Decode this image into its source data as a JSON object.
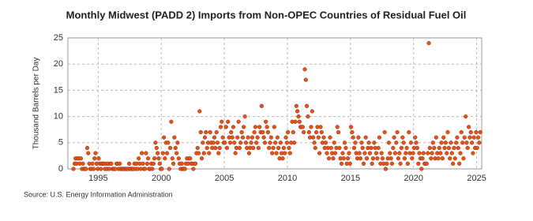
{
  "chart_data": {
    "type": "scatter",
    "title": "Monthly Midwest (PADD 2) Imports from Non-OPEC Countries of Residual Fuel Oil",
    "y_label": "Thousand Barrels per Day",
    "source": "Source: U.S. Energy Information Administration",
    "xlim": [
      1992.6,
      2025.4
    ],
    "xticks": [
      1995,
      2000,
      2005,
      2010,
      2015,
      2020,
      2025
    ],
    "ylim": [
      0,
      25
    ],
    "yticks": [
      0,
      5,
      10,
      15,
      20,
      25
    ],
    "grid": true,
    "series": [
      {
        "color": "#e0541c",
        "x": [
          1993.04,
          1993.13,
          1993.21,
          1993.29,
          1993.38,
          1993.46,
          1993.54,
          1993.63,
          1993.71,
          1993.79,
          1993.88,
          1993.96,
          1994.04,
          1994.13,
          1994.21,
          1994.29,
          1994.38,
          1994.46,
          1994.54,
          1994.63,
          1994.71,
          1994.79,
          1994.88,
          1994.96,
          1995.04,
          1995.13,
          1995.21,
          1995.29,
          1995.38,
          1995.46,
          1995.54,
          1995.63,
          1995.71,
          1995.79,
          1995.88,
          1995.96,
          1996.04,
          1996.13,
          1996.21,
          1996.29,
          1996.38,
          1996.46,
          1996.54,
          1996.63,
          1996.71,
          1996.79,
          1996.88,
          1996.96,
          1997.04,
          1997.13,
          1997.21,
          1997.29,
          1997.38,
          1997.46,
          1997.54,
          1997.63,
          1997.71,
          1997.79,
          1997.88,
          1997.96,
          1998.04,
          1998.13,
          1998.21,
          1998.29,
          1998.38,
          1998.46,
          1998.54,
          1998.63,
          1998.71,
          1998.79,
          1998.88,
          1998.96,
          1999.04,
          1999.13,
          1999.21,
          1999.29,
          1999.38,
          1999.46,
          1999.54,
          1999.63,
          1999.71,
          1999.79,
          1999.88,
          1999.96,
          2000.04,
          2000.13,
          2000.21,
          2000.29,
          2000.38,
          2000.46,
          2000.54,
          2000.63,
          2000.71,
          2000.79,
          2000.88,
          2000.96,
          2001.04,
          2001.13,
          2001.21,
          2001.29,
          2001.38,
          2001.46,
          2001.54,
          2001.63,
          2001.71,
          2001.79,
          2001.88,
          2001.96,
          2002.04,
          2002.13,
          2002.21,
          2002.29,
          2002.38,
          2002.46,
          2002.54,
          2002.63,
          2002.71,
          2002.79,
          2002.88,
          2002.96,
          2003.04,
          2003.13,
          2003.21,
          2003.29,
          2003.38,
          2003.46,
          2003.54,
          2003.63,
          2003.71,
          2003.79,
          2003.88,
          2003.96,
          2004.04,
          2004.13,
          2004.21,
          2004.29,
          2004.38,
          2004.46,
          2004.54,
          2004.63,
          2004.71,
          2004.79,
          2004.88,
          2004.96,
          2005.04,
          2005.13,
          2005.21,
          2005.29,
          2005.38,
          2005.46,
          2005.54,
          2005.63,
          2005.71,
          2005.79,
          2005.88,
          2005.96,
          2006.04,
          2006.13,
          2006.21,
          2006.29,
          2006.38,
          2006.46,
          2006.54,
          2006.63,
          2006.71,
          2006.79,
          2006.88,
          2006.96,
          2007.04,
          2007.13,
          2007.21,
          2007.29,
          2007.38,
          2007.46,
          2007.54,
          2007.63,
          2007.71,
          2007.79,
          2007.88,
          2007.96,
          2008.04,
          2008.13,
          2008.21,
          2008.29,
          2008.38,
          2008.46,
          2008.54,
          2008.63,
          2008.71,
          2008.79,
          2008.88,
          2008.96,
          2009.04,
          2009.13,
          2009.21,
          2009.29,
          2009.38,
          2009.46,
          2009.54,
          2009.63,
          2009.71,
          2009.79,
          2009.88,
          2009.96,
          2010.04,
          2010.13,
          2010.21,
          2010.29,
          2010.38,
          2010.46,
          2010.54,
          2010.63,
          2010.71,
          2010.79,
          2010.88,
          2010.96,
          2011.04,
          2011.13,
          2011.21,
          2011.29,
          2011.38,
          2011.46,
          2011.54,
          2011.63,
          2011.71,
          2011.79,
          2011.88,
          2011.96,
          2012.04,
          2012.13,
          2012.21,
          2012.29,
          2012.38,
          2012.46,
          2012.54,
          2012.63,
          2012.71,
          2012.79,
          2012.88,
          2012.96,
          2013.04,
          2013.13,
          2013.21,
          2013.29,
          2013.38,
          2013.46,
          2013.54,
          2013.63,
          2013.71,
          2013.79,
          2013.88,
          2013.96,
          2014.04,
          2014.13,
          2014.21,
          2014.29,
          2014.38,
          2014.46,
          2014.54,
          2014.63,
          2014.71,
          2014.79,
          2014.88,
          2014.96,
          2015.04,
          2015.13,
          2015.21,
          2015.29,
          2015.38,
          2015.46,
          2015.54,
          2015.63,
          2015.71,
          2015.79,
          2015.88,
          2015.96,
          2016.04,
          2016.13,
          2016.21,
          2016.29,
          2016.38,
          2016.46,
          2016.54,
          2016.63,
          2016.71,
          2016.79,
          2016.88,
          2016.96,
          2017.04,
          2017.13,
          2017.21,
          2017.29,
          2017.38,
          2017.46,
          2017.54,
          2017.63,
          2017.71,
          2017.79,
          2017.88,
          2017.96,
          2018.04,
          2018.13,
          2018.21,
          2018.29,
          2018.38,
          2018.46,
          2018.54,
          2018.63,
          2018.71,
          2018.79,
          2018.88,
          2018.96,
          2019.04,
          2019.13,
          2019.21,
          2019.29,
          2019.38,
          2019.46,
          2019.54,
          2019.63,
          2019.71,
          2019.79,
          2019.88,
          2019.96,
          2020.04,
          2020.13,
          2020.21,
          2020.29,
          2020.38,
          2020.46,
          2020.54,
          2020.63,
          2020.71,
          2020.79,
          2020.88,
          2020.96,
          2021.04,
          2021.13,
          2021.21,
          2021.29,
          2021.38,
          2021.46,
          2021.54,
          2021.63,
          2021.71,
          2021.79,
          2021.88,
          2021.96,
          2022.04,
          2022.13,
          2022.21,
          2022.29,
          2022.38,
          2022.46,
          2022.54,
          2022.63,
          2022.71,
          2022.79,
          2022.88,
          2022.96,
          2023.04,
          2023.13,
          2023.21,
          2023.29,
          2023.38,
          2023.46,
          2023.54,
          2023.63,
          2023.71,
          2023.79,
          2023.88,
          2023.96,
          2024.04,
          2024.13,
          2024.21,
          2024.29,
          2024.38,
          2024.46,
          2024.54,
          2024.63,
          2024.71,
          2024.79,
          2024.88,
          2024.96,
          2025.04,
          2025.13,
          2025.21,
          2025.29
        ],
        "values": [
          0,
          1,
          2,
          1,
          2,
          2,
          1,
          2,
          0,
          1,
          0,
          0,
          0,
          4,
          3,
          1,
          0,
          0,
          1,
          0,
          2,
          3,
          1,
          0,
          2,
          1,
          0,
          1,
          1,
          1,
          0,
          1,
          0,
          1,
          0,
          1,
          1,
          0,
          0,
          0,
          0,
          1,
          1,
          0,
          1,
          0,
          0,
          0,
          0,
          0,
          0,
          0,
          0,
          1,
          0,
          0,
          0,
          0,
          1,
          0,
          1,
          0,
          2,
          1,
          0,
          3,
          1,
          0,
          0,
          3,
          1,
          2,
          0,
          0,
          1,
          0,
          1,
          2,
          5,
          4,
          3,
          2,
          1,
          0,
          0,
          3,
          6,
          2,
          5,
          3,
          5,
          0,
          4,
          9,
          2,
          1,
          6,
          4,
          3,
          5,
          2,
          1,
          0,
          1,
          0,
          0,
          0,
          1,
          2,
          1,
          2,
          2,
          1,
          1,
          0,
          1,
          1,
          3,
          4,
          3,
          11,
          7,
          2,
          5,
          3,
          6,
          7,
          4,
          5,
          3,
          7,
          5,
          4,
          5,
          6,
          4,
          7,
          5,
          3,
          4,
          8,
          9,
          6,
          5,
          5,
          8,
          4,
          9,
          6,
          5,
          7,
          6,
          8,
          5,
          3,
          4,
          6,
          9,
          4,
          5,
          7,
          6,
          8,
          10,
          5,
          4,
          6,
          3,
          4,
          5,
          6,
          4,
          7,
          8,
          5,
          6,
          4,
          8,
          7,
          12,
          7,
          6,
          5,
          9,
          8,
          7,
          4,
          5,
          6,
          3,
          4,
          8,
          5,
          3,
          6,
          4,
          2,
          5,
          3,
          2,
          4,
          3,
          6,
          5,
          7,
          4,
          3,
          5,
          9,
          7,
          5,
          9,
          12,
          11,
          10,
          9,
          8,
          8,
          8,
          7,
          19,
          17,
          12,
          10,
          7,
          6,
          8,
          11,
          6,
          5,
          4,
          7,
          8,
          6,
          3,
          8,
          7,
          5,
          6,
          4,
          5,
          3,
          4,
          2,
          6,
          4,
          3,
          2,
          5,
          3,
          4,
          8,
          7,
          4,
          2,
          1,
          3,
          2,
          5,
          4,
          1,
          2,
          3,
          1,
          8,
          7,
          6,
          4,
          5,
          3,
          2,
          6,
          3,
          2,
          5,
          4,
          1,
          3,
          6,
          2,
          4,
          5,
          3,
          4,
          1,
          2,
          5,
          4,
          3,
          2,
          4,
          6,
          1,
          3,
          2,
          1,
          7,
          0,
          1,
          2,
          5,
          3,
          2,
          1,
          4,
          6,
          3,
          5,
          7,
          2,
          3,
          1,
          4,
          6,
          5,
          2,
          3,
          4,
          1,
          7,
          3,
          5,
          2,
          3,
          4,
          6,
          5,
          4,
          1,
          3,
          2,
          0,
          2,
          3,
          1,
          1,
          1,
          3,
          24,
          4,
          2,
          3,
          5,
          4,
          2,
          6,
          3,
          2,
          4,
          3,
          5,
          2,
          6,
          4,
          5,
          3,
          7,
          4,
          2,
          5,
          3,
          1,
          4,
          2,
          5,
          6,
          4,
          1,
          3,
          7,
          5,
          2,
          6,
          10,
          5,
          4,
          8,
          6,
          7,
          5,
          3,
          6,
          4,
          7,
          4,
          6,
          5,
          7
        ]
      }
    ]
  }
}
